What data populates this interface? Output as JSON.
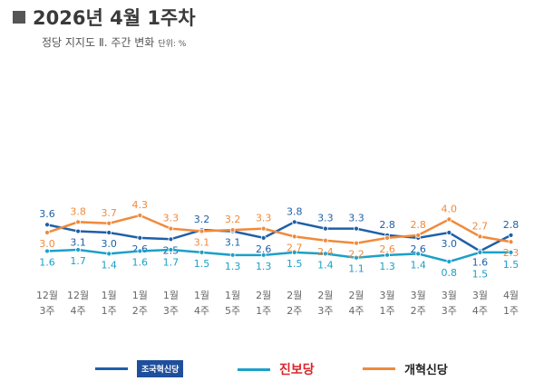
{
  "header": {
    "title": "2026년 4월 1주차",
    "subtitle": "정당 지지도 Ⅱ. 주간 변화",
    "unit": "단위: %"
  },
  "chart_data": {
    "type": "line",
    "categories": [
      [
        "12월",
        "3주"
      ],
      [
        "12월",
        "4주"
      ],
      [
        "1월",
        "1주"
      ],
      [
        "1월",
        "2주"
      ],
      [
        "1월",
        "3주"
      ],
      [
        "1월",
        "4주"
      ],
      [
        "1월",
        "5주"
      ],
      [
        "2월",
        "1주"
      ],
      [
        "2월",
        "2주"
      ],
      [
        "2월",
        "3주"
      ],
      [
        "2월",
        "4주"
      ],
      [
        "3월",
        "1주"
      ],
      [
        "3월",
        "2주"
      ],
      [
        "3월",
        "3주"
      ],
      [
        "3월",
        "4주"
      ],
      [
        "4월",
        "1주"
      ]
    ],
    "series": [
      {
        "name": "조국혁신당",
        "color": "#1f5fa8",
        "values": [
          3.6,
          3.1,
          3.0,
          2.6,
          2.5,
          3.2,
          3.1,
          2.6,
          3.8,
          3.3,
          3.3,
          2.8,
          2.6,
          3.0,
          1.6,
          2.8
        ]
      },
      {
        "name": "진보당",
        "color": "#1ca0c8",
        "values": [
          1.6,
          1.7,
          1.4,
          1.6,
          1.7,
          1.5,
          1.3,
          1.3,
          1.5,
          1.4,
          1.1,
          1.3,
          1.4,
          0.8,
          1.5,
          1.5
        ]
      },
      {
        "name": "개혁신당",
        "color": "#f08a3c",
        "values": [
          3.0,
          3.8,
          3.7,
          4.3,
          3.3,
          3.1,
          3.2,
          3.3,
          2.7,
          2.4,
          2.2,
          2.6,
          2.8,
          4.0,
          2.7,
          2.3
        ]
      }
    ],
    "label_position": {
      "조국혁신당": [
        "above",
        "below",
        "below",
        "below",
        "below",
        "above",
        "below",
        "below",
        "above",
        "above",
        "above",
        "above",
        "below",
        "below",
        "below",
        "above"
      ],
      "진보당": [
        "below",
        "below",
        "below",
        "below",
        "below",
        "below",
        "below",
        "below",
        "below",
        "below",
        "below",
        "below",
        "below",
        "below",
        "below",
        "below"
      ],
      "개혁신당": [
        "below",
        "above",
        "above",
        "above",
        "above",
        "below",
        "above",
        "above",
        "below",
        "below",
        "below",
        "below",
        "above",
        "above",
        "above",
        "below"
      ]
    },
    "grid": false,
    "legend": "bottom"
  }
}
